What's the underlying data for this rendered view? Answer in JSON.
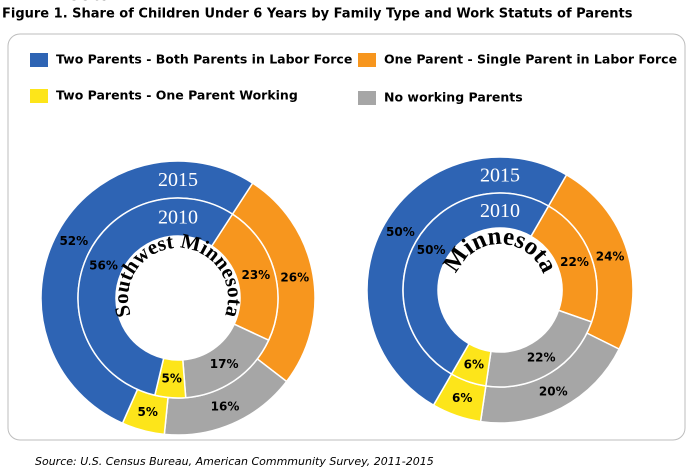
{
  "title": "Figure 1. Share of Children Under 6 Years by Family Type and Work Statuts of Parents",
  "legend": {
    "categories": [
      "Two Parents - Both Parents in Labor Force",
      "One Parent - Single Parent in Labor Force",
      "Two Parents - One Parent Working",
      "No working Parents"
    ],
    "colors": [
      "#2e64b4",
      "#f7961e",
      "#fde51a",
      "#a6a6a6"
    ]
  },
  "chart_data": [
    {
      "type": "donut",
      "label": "Southwest Minnesota",
      "series": [
        {
          "name": "2015",
          "values": [
            52,
            26,
            5,
            16
          ],
          "value_labels": [
            "52%",
            "26%",
            "5%",
            "16%"
          ]
        },
        {
          "name": "2010",
          "values": [
            56,
            23,
            5,
            17
          ],
          "value_labels": [
            "56%",
            "23%",
            "5%",
            "17%"
          ]
        }
      ]
    },
    {
      "type": "donut",
      "label": "Minnesota",
      "series": [
        {
          "name": "2015",
          "values": [
            50,
            24,
            6,
            20
          ],
          "value_labels": [
            "50%",
            "24%",
            "6%",
            "20%"
          ]
        },
        {
          "name": "2010",
          "values": [
            50,
            22,
            6,
            22
          ],
          "value_labels": [
            "50%",
            "22%",
            "6%",
            "22%"
          ]
        }
      ]
    }
  ],
  "source": "Source: U.S. Census Bureau, American Commmunity Survey, 2011-2015"
}
